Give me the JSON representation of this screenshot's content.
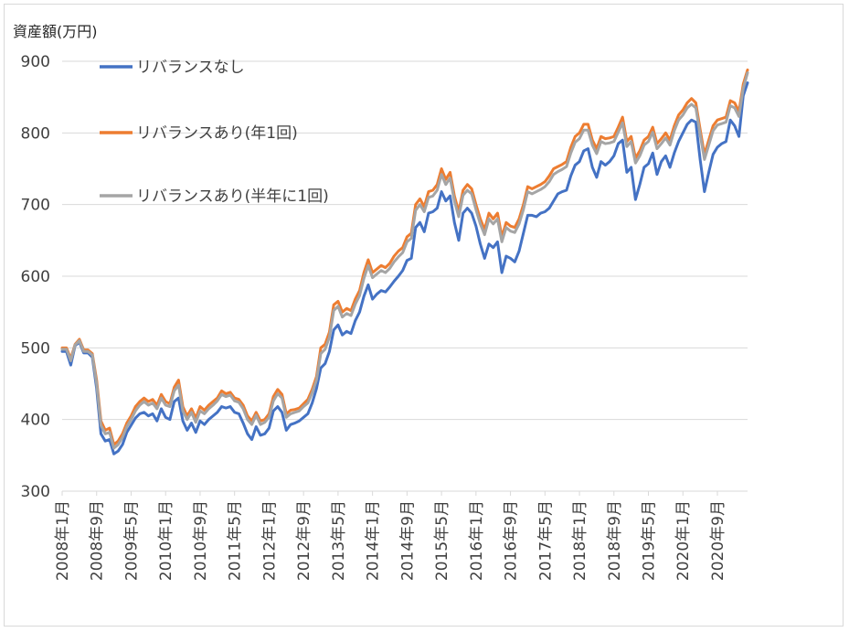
{
  "chart_data": {
    "type": "line",
    "title": "",
    "ylabel": "資産額(万円)",
    "xlabel": "",
    "ylim": [
      300,
      900
    ],
    "y_ticks": [
      300,
      400,
      500,
      600,
      700,
      800,
      900
    ],
    "grid": "horizontal",
    "legend_position": "top-left (inside plot)",
    "x_tick_labels": [
      "2008年1月",
      "2008年9月",
      "2009年5月",
      "2010年1月",
      "2010年9月",
      "2011年5月",
      "2012年1月",
      "2012年9月",
      "2013年5月",
      "2014年1月",
      "2014年9月",
      "2015年5月",
      "2016年1月",
      "2016年9月",
      "2017年5月",
      "2018年1月",
      "2018年9月",
      "2019年5月",
      "2020年1月",
      "2020年9月"
    ],
    "x_start": "2008年1月",
    "x_end": "2020年12月",
    "series": [
      {
        "name": "リバランスなし",
        "color": "#4472c4",
        "values": [
          495,
          495,
          476,
          503,
          508,
          493,
          493,
          487,
          443,
          380,
          370,
          372,
          352,
          356,
          365,
          382,
          392,
          402,
          408,
          410,
          405,
          408,
          398,
          415,
          403,
          400,
          425,
          430,
          398,
          385,
          395,
          382,
          398,
          393,
          400,
          405,
          410,
          418,
          416,
          418,
          410,
          408,
          395,
          380,
          372,
          390,
          378,
          380,
          388,
          412,
          418,
          410,
          385,
          393,
          395,
          398,
          403,
          408,
          423,
          443,
          472,
          478,
          495,
          525,
          532,
          518,
          523,
          520,
          538,
          550,
          572,
          588,
          568,
          575,
          580,
          578,
          585,
          593,
          600,
          608,
          622,
          625,
          668,
          675,
          662,
          688,
          690,
          695,
          718,
          705,
          712,
          675,
          650,
          688,
          695,
          688,
          670,
          645,
          625,
          645,
          640,
          648,
          605,
          628,
          625,
          620,
          635,
          660,
          685,
          685,
          683,
          688,
          690,
          695,
          705,
          715,
          718,
          720,
          740,
          755,
          760,
          775,
          778,
          752,
          738,
          760,
          755,
          760,
          768,
          785,
          790,
          745,
          752,
          707,
          728,
          752,
          757,
          772,
          742,
          760,
          768,
          752,
          772,
          788,
          800,
          812,
          818,
          815,
          763,
          718,
          745,
          770,
          780,
          785,
          788,
          818,
          810,
          795,
          852,
          870
        ]
      },
      {
        "name": "リバランスあり(年1回)",
        "color": "#ed7d31",
        "values": [
          500,
          500,
          485,
          505,
          512,
          497,
          497,
          492,
          455,
          398,
          385,
          388,
          365,
          370,
          380,
          395,
          405,
          418,
          425,
          430,
          425,
          428,
          420,
          435,
          425,
          422,
          445,
          455,
          418,
          405,
          415,
          402,
          418,
          413,
          420,
          425,
          430,
          440,
          436,
          438,
          430,
          428,
          420,
          405,
          398,
          410,
          398,
          400,
          408,
          432,
          442,
          435,
          408,
          413,
          414,
          416,
          422,
          428,
          442,
          460,
          500,
          505,
          522,
          560,
          565,
          550,
          555,
          552,
          568,
          580,
          605,
          623,
          605,
          610,
          615,
          612,
          618,
          628,
          635,
          640,
          655,
          660,
          700,
          708,
          697,
          718,
          720,
          728,
          750,
          735,
          745,
          712,
          690,
          720,
          728,
          722,
          700,
          680,
          665,
          688,
          680,
          688,
          655,
          675,
          670,
          668,
          680,
          700,
          725,
          722,
          725,
          728,
          732,
          740,
          750,
          753,
          756,
          760,
          780,
          795,
          800,
          812,
          812,
          790,
          778,
          795,
          792,
          793,
          795,
          808,
          822,
          788,
          795,
          765,
          775,
          790,
          795,
          808,
          785,
          792,
          800,
          790,
          810,
          825,
          832,
          842,
          848,
          842,
          805,
          770,
          790,
          810,
          818,
          820,
          822,
          845,
          842,
          830,
          868,
          888
        ]
      },
      {
        "name": "リバランスあり(半年に1回)",
        "color": "#a5a5a5",
        "values": [
          498,
          498,
          482,
          504,
          510,
          495,
          495,
          490,
          450,
          392,
          380,
          382,
          360,
          365,
          375,
          390,
          400,
          412,
          420,
          425,
          420,
          423,
          415,
          430,
          420,
          418,
          440,
          448,
          412,
          400,
          410,
          396,
          412,
          408,
          415,
          420,
          426,
          435,
          432,
          434,
          426,
          424,
          415,
          400,
          393,
          406,
          393,
          396,
          403,
          426,
          436,
          430,
          403,
          408,
          410,
          412,
          418,
          423,
          437,
          455,
          492,
          498,
          515,
          552,
          558,
          543,
          548,
          545,
          561,
          573,
          597,
          615,
          598,
          603,
          608,
          605,
          611,
          620,
          627,
          633,
          648,
          653,
          692,
          700,
          690,
          710,
          712,
          720,
          742,
          728,
          737,
          705,
          683,
          713,
          720,
          715,
          693,
          673,
          658,
          680,
          673,
          680,
          648,
          668,
          663,
          661,
          673,
          693,
          718,
          715,
          718,
          721,
          725,
          732,
          742,
          746,
          749,
          753,
          772,
          787,
          792,
          804,
          804,
          783,
          771,
          788,
          785,
          786,
          788,
          801,
          814,
          781,
          788,
          758,
          768,
          783,
          788,
          801,
          778,
          785,
          793,
          783,
          803,
          818,
          825,
          835,
          840,
          835,
          798,
          763,
          783,
          803,
          811,
          813,
          815,
          838,
          835,
          823,
          862,
          884
        ]
      }
    ]
  }
}
